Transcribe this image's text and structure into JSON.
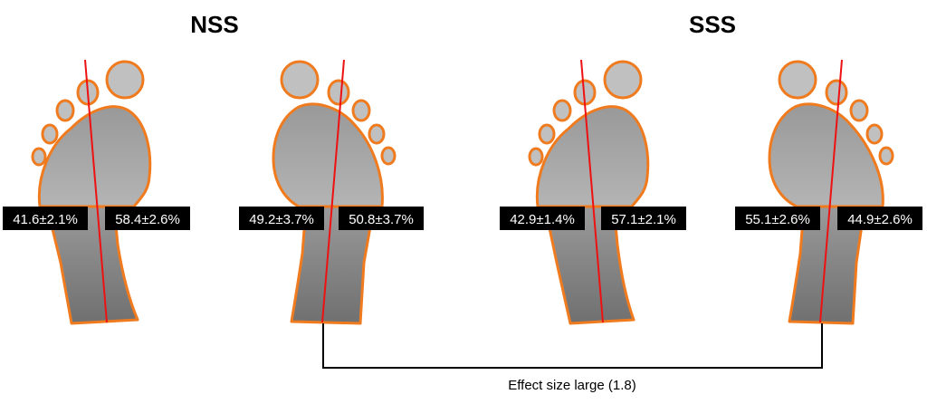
{
  "groups": [
    {
      "title": "NSS",
      "feet": [
        {
          "side": "left",
          "medial": "41.6±2.1%",
          "lateral": "58.4±2.6%"
        },
        {
          "side": "right",
          "medial": "49.2±3.7%",
          "lateral": "50.8±3.7%"
        }
      ]
    },
    {
      "title": "SSS",
      "feet": [
        {
          "side": "left",
          "medial": "42.9±1.4%",
          "lateral": "57.1±2.1%"
        },
        {
          "side": "right",
          "medial": "55.1±2.6%",
          "lateral": "44.9±2.6%"
        }
      ]
    }
  ],
  "comparison": {
    "label": "Effect size large (1.8)"
  },
  "colors": {
    "outline": "#f07b1f",
    "toe_fill": "#c0c0c0",
    "axis_line": "#ee1111",
    "label_bg": "#000000",
    "bracket": "#000000"
  }
}
